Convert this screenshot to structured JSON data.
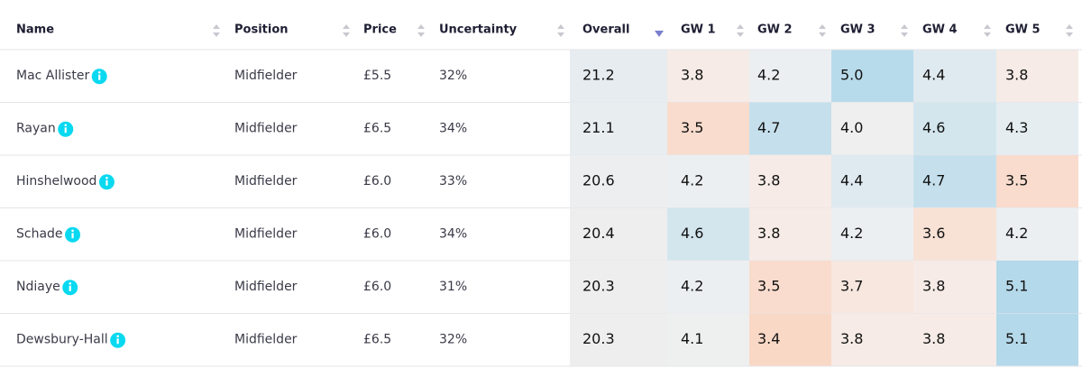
{
  "table": {
    "headers": [
      "Name",
      "Position",
      "Price",
      "Uncertainty",
      "Overall",
      "GW 1",
      "GW 2",
      "GW 3",
      "GW 4",
      "GW 5"
    ],
    "sort_index": 4,
    "rows": [
      {
        "name": "Mac Allister",
        "position": "Midfielder",
        "price": "£5.5",
        "uncertainty": "32%",
        "scores": [
          "21.2",
          "3.8",
          "4.2",
          "5.0",
          "4.4",
          "3.8"
        ],
        "colors": [
          "#e6ecf0",
          "#f6ebe6",
          "#ebeff1",
          "#b8dbeb",
          "#dfeaf0",
          "#f6ebe6"
        ]
      },
      {
        "name": "Rayan",
        "position": "Midfielder",
        "price": "£6.5",
        "uncertainty": "34%",
        "scores": [
          "21.1",
          "3.5",
          "4.7",
          "4.0",
          "4.6",
          "4.3"
        ],
        "colors": [
          "#e8edf0",
          "#f9dccd",
          "#c5e0ec",
          "#f0efef",
          "#d3e6ee",
          "#e5edf1"
        ]
      },
      {
        "name": "Hinshelwood",
        "position": "Midfielder",
        "price": "£6.0",
        "uncertainty": "33%",
        "scores": [
          "20.6",
          "4.2",
          "3.8",
          "4.4",
          "4.7",
          "3.5"
        ],
        "colors": [
          "#eceeef",
          "#ebeff1",
          "#f6ebe6",
          "#dfeaf0",
          "#c5e0ec",
          "#f9dccd"
        ]
      },
      {
        "name": "Schade",
        "position": "Midfielder",
        "price": "£6.0",
        "uncertainty": "34%",
        "scores": [
          "20.4",
          "4.6",
          "3.8",
          "4.2",
          "3.6",
          "4.2"
        ],
        "colors": [
          "#eeeeee",
          "#d3e6ee",
          "#f6ebe6",
          "#ebeff1",
          "#f8e2d6",
          "#ebeff1"
        ]
      },
      {
        "name": "Ndiaye",
        "position": "Midfielder",
        "price": "£6.0",
        "uncertainty": "31%",
        "scores": [
          "20.3",
          "4.2",
          "3.5",
          "3.7",
          "3.8",
          "5.1"
        ],
        "colors": [
          "#efeeee",
          "#ebeff1",
          "#f9dccd",
          "#f7e7df",
          "#f6ebe6",
          "#b4d9ea"
        ]
      },
      {
        "name": "Dewsbury-Hall",
        "position": "Midfielder",
        "price": "£6.5",
        "uncertainty": "32%",
        "scores": [
          "20.3",
          "4.1",
          "3.4",
          "3.8",
          "3.8",
          "5.1"
        ],
        "colors": [
          "#efeeee",
          "#eef0f0",
          "#fad8c6",
          "#f6ebe6",
          "#f6ebe6",
          "#b4d9ea"
        ]
      }
    ]
  }
}
